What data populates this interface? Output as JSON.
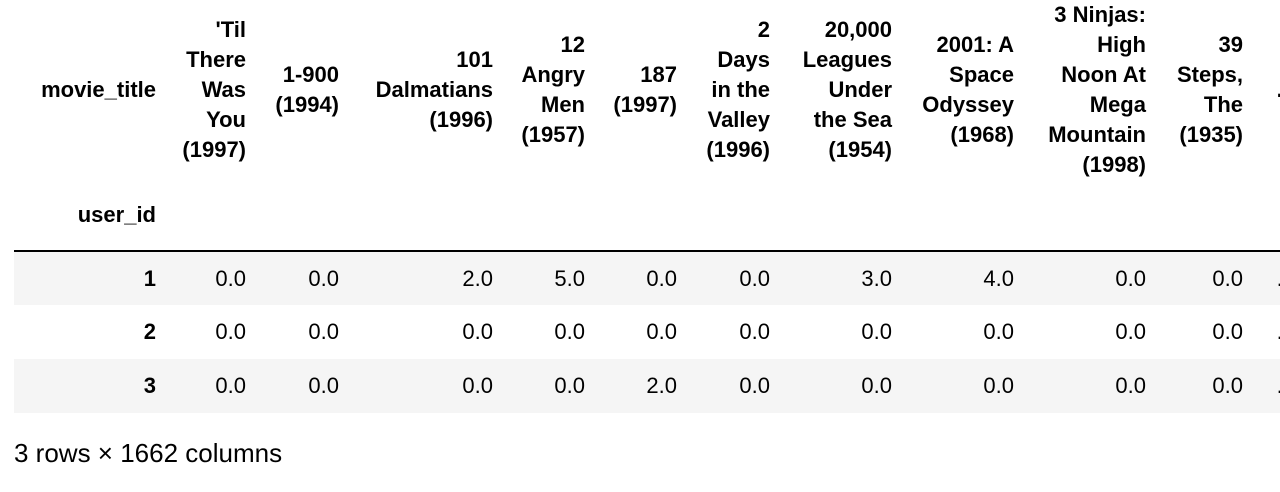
{
  "table": {
    "columns_name": "movie_title",
    "index_name": "user_id",
    "ellipsis": "...",
    "headers": [
      [
        "'Til",
        "There",
        "Was",
        "You",
        "(1997)"
      ],
      [
        "1-900",
        "(1994)"
      ],
      [
        "101",
        "Dalmatians",
        "(1996)"
      ],
      [
        "12",
        "Angry",
        "Men",
        "(1957)"
      ],
      [
        "187",
        "(1997)"
      ],
      [
        "2",
        "Days",
        "in the",
        "Valley",
        "(1996)"
      ],
      [
        "20,000",
        "Leagues",
        "Under",
        "the Sea",
        "(1954)"
      ],
      [
        "2001: A",
        "Space",
        "Odyssey",
        "(1968)"
      ],
      [
        "3 Ninjas:",
        "High",
        "Noon At",
        "Mega",
        "Mountain",
        "(1998)"
      ],
      [
        "39",
        "Steps,",
        "The",
        "(1935)"
      ]
    ],
    "rows": [
      {
        "index": "1",
        "values": [
          "0.0",
          "0.0",
          "2.0",
          "5.0",
          "0.0",
          "0.0",
          "3.0",
          "4.0",
          "0.0",
          "0.0"
        ]
      },
      {
        "index": "2",
        "values": [
          "0.0",
          "0.0",
          "0.0",
          "0.0",
          "0.0",
          "0.0",
          "0.0",
          "0.0",
          "0.0",
          "0.0"
        ]
      },
      {
        "index": "3",
        "values": [
          "0.0",
          "0.0",
          "0.0",
          "0.0",
          "2.0",
          "0.0",
          "0.0",
          "0.0",
          "0.0",
          "0.0"
        ]
      }
    ]
  },
  "caption": "3 rows × 1662 columns"
}
